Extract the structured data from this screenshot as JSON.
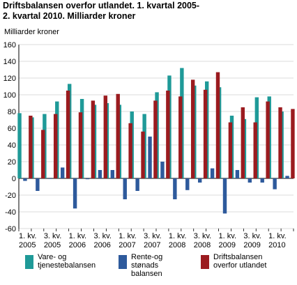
{
  "title": {
    "line1": "Driftsbalansen overfor utlandet. 1. kvartal 2005-",
    "line2": "2. kvartal 2010. Milliarder kroner"
  },
  "legend": [
    {
      "label_line1": "Vare- og",
      "label_line2": "tjenestebalansen",
      "label_line3": "",
      "color": "#1f9a98"
    },
    {
      "label_line1": "Rente-og",
      "label_line2": "stønads",
      "label_line3": "balansen",
      "color": "#2e5a9c"
    },
    {
      "label_line1": "Driftsbalansen",
      "label_line2": "overfor utlandet",
      "label_line3": "",
      "color": "#9b1b1f"
    }
  ],
  "chart_data": {
    "type": "bar",
    "title": "Driftsbalansen overfor utlandet. 1. kvartal 2005-2. kvartal 2010. Milliarder kroner",
    "ylabel": "Milliarder kroner",
    "xlabel": "",
    "ylim": [
      -60,
      160
    ],
    "yticks": [
      160,
      140,
      120,
      100,
      80,
      60,
      40,
      20,
      0,
      -20,
      -40,
      -60
    ],
    "grid": true,
    "legend_position": "bottom",
    "categories": [
      "1. kv. 2005",
      "2. kv. 2005",
      "3. kv. 2005",
      "4. kv. 2005",
      "1. kv. 2006",
      "2. kv. 2006",
      "3. kv. 2006",
      "4. kv. 2006",
      "1. kv. 2007",
      "2. kv. 2007",
      "3. kv. 2007",
      "4. kv. 2007",
      "1. kv. 2008",
      "2. kv. 2008",
      "3. kv. 2008",
      "4. kv. 2008",
      "1. kv. 2009",
      "2. kv. 2009",
      "3. kv. 2009",
      "4. kv. 2009",
      "1. kv. 2010",
      "2. kv. 2010"
    ],
    "tick_labels": [
      {
        "index": 0,
        "line1": "1. kv.",
        "line2": "2005"
      },
      {
        "index": 2,
        "line1": "3. kv.",
        "line2": "2005"
      },
      {
        "index": 4,
        "line1": "1. kv.",
        "line2": "2006"
      },
      {
        "index": 6,
        "line1": "3. kv.",
        "line2": "2006"
      },
      {
        "index": 8,
        "line1": "1. kv.",
        "line2": "2007"
      },
      {
        "index": 10,
        "line1": "3. kv.",
        "line2": "2007"
      },
      {
        "index": 12,
        "line1": "1. kv.",
        "line2": "2008"
      },
      {
        "index": 14,
        "line1": "3. kv.",
        "line2": "2008"
      },
      {
        "index": 16,
        "line1": "1. kv.",
        "line2": "2009"
      },
      {
        "index": 18,
        "line1": "3. kv.",
        "line2": "2009"
      },
      {
        "index": 20,
        "line1": "1. kv.",
        "line2": "2010"
      }
    ],
    "series": [
      {
        "name": "Vare- og tjenestebalansen",
        "color": "#1f9a98",
        "values": [
          78,
          73,
          77,
          92,
          113,
          95,
          88,
          90,
          88,
          80,
          77,
          103,
          123,
          132,
          111,
          116,
          109,
          75,
          71,
          97,
          98,
          80
        ]
      },
      {
        "name": "Rente-og stønads balansen",
        "color": "#2e5a9c",
        "values": [
          -3,
          -15,
          0,
          13,
          -36,
          -1,
          10,
          10,
          -25,
          -15,
          50,
          20,
          -25,
          -14,
          -5,
          12,
          -42,
          10,
          -5,
          -5,
          -13,
          3
        ]
      },
      {
        "name": "Driftsbalansen overfor utlandet",
        "color": "#9b1b1f",
        "values": [
          75,
          58,
          77,
          105,
          79,
          93,
          99,
          101,
          66,
          56,
          93,
          105,
          98,
          118,
          106,
          127,
          67,
          85,
          67,
          92,
          85,
          83
        ]
      }
    ]
  }
}
